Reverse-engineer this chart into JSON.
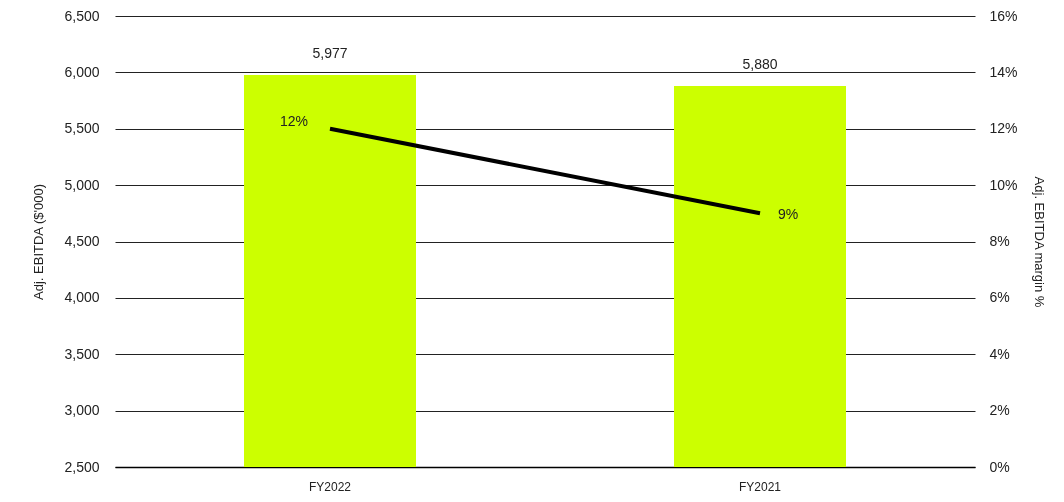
{
  "chart_data": {
    "type": "bar",
    "categories": [
      "FY2022",
      "FY2021"
    ],
    "ylabel": "Adj. EBITDA ($'000)",
    "y2label": "Adj. EBITDA margin %",
    "ylim": [
      2500,
      6500
    ],
    "yticks": [
      {
        "value": 2500,
        "label": "2,500"
      },
      {
        "value": 3000,
        "label": "3,000"
      },
      {
        "value": 3500,
        "label": "3,500"
      },
      {
        "value": 4000,
        "label": "4,000"
      },
      {
        "value": 4500,
        "label": "4,500"
      },
      {
        "value": 5000,
        "label": "5,000"
      },
      {
        "value": 5500,
        "label": "5,500"
      },
      {
        "value": 6000,
        "label": "6,000"
      },
      {
        "value": 6500,
        "label": "6,500"
      }
    ],
    "y2lim": [
      0,
      16
    ],
    "y2ticks": [
      {
        "value": 0,
        "label": "0%"
      },
      {
        "value": 2,
        "label": "2%"
      },
      {
        "value": 4,
        "label": "4%"
      },
      {
        "value": 6,
        "label": "6%"
      },
      {
        "value": 8,
        "label": "8%"
      },
      {
        "value": 10,
        "label": "10%"
      },
      {
        "value": 12,
        "label": "12%"
      },
      {
        "value": 14,
        "label": "14%"
      },
      {
        "value": 16,
        "label": "16%"
      }
    ],
    "grid": "y",
    "series": [
      {
        "color": "#ccff00",
        "values": [
          5977,
          5880
        ],
        "value_labels": [
          "5,977",
          "5,880"
        ]
      },
      {
        "type": "line",
        "axis": "y2",
        "color": "#000000",
        "values": [
          12,
          9
        ],
        "value_labels": [
          "12%",
          "9%"
        ],
        "marker": "none",
        "line_style": "solid"
      }
    ]
  }
}
